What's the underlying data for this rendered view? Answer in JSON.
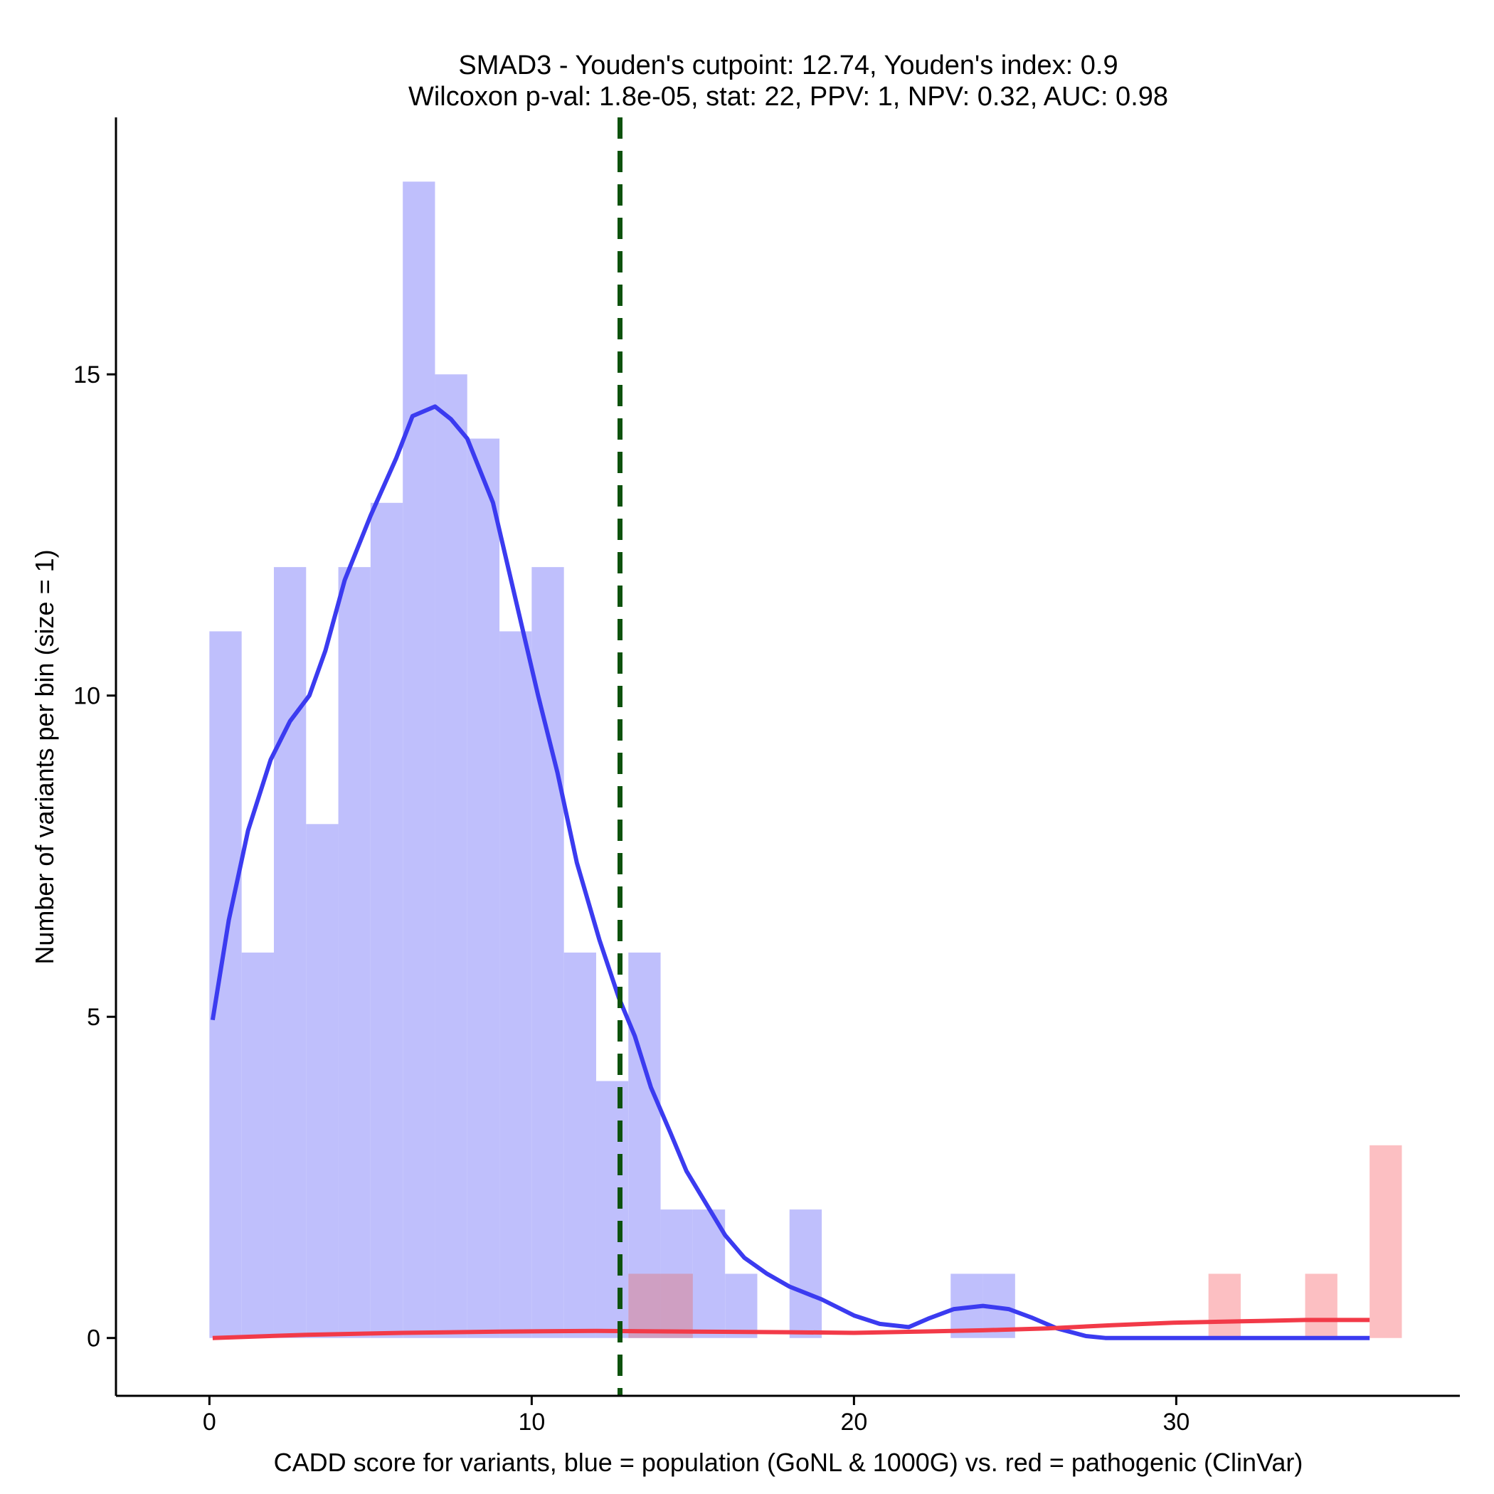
{
  "chart_data": {
    "type": "bar",
    "title_line1": "SMAD3 - Youden's cutpoint: 12.74, Youden's index: 0.9",
    "title_line2": "Wilcoxon p-val: 1.8e-05, stat: 22, PPV: 1, NPV: 0.32, AUC: 0.98",
    "xlabel": "CADD score for variants, blue = population (GoNL & 1000G) vs. red = pathogenic (ClinVar)",
    "ylabel": "Number of variants per bin (size = 1)",
    "xlim": [
      -2.9,
      38.8
    ],
    "ylim": [
      -0.9,
      19.0
    ],
    "x_ticks": [
      0,
      10,
      20,
      30
    ],
    "y_ticks": [
      0,
      5,
      10,
      15
    ],
    "bin_size": 1,
    "cutpoint": 12.74,
    "colors": {
      "population_bar": "#bfbffc",
      "pathogenic_bar": "#fcbfc2",
      "overlap_bar": "#cf9fc2",
      "population_line": "#3b3bf0",
      "pathogenic_line": "#f23a48",
      "cutpoint_line": "#0d520d",
      "axis": "#000000"
    },
    "series": [
      {
        "name": "population",
        "bins": [
          {
            "x": 0,
            "count": 11
          },
          {
            "x": 1,
            "count": 6
          },
          {
            "x": 2,
            "count": 12
          },
          {
            "x": 3,
            "count": 8
          },
          {
            "x": 4,
            "count": 12
          },
          {
            "x": 5,
            "count": 13
          },
          {
            "x": 6,
            "count": 18
          },
          {
            "x": 7,
            "count": 15
          },
          {
            "x": 8,
            "count": 14
          },
          {
            "x": 9,
            "count": 11
          },
          {
            "x": 10,
            "count": 12
          },
          {
            "x": 11,
            "count": 6
          },
          {
            "x": 12,
            "count": 4
          },
          {
            "x": 13,
            "count": 6
          },
          {
            "x": 14,
            "count": 2
          },
          {
            "x": 15,
            "count": 2
          },
          {
            "x": 16,
            "count": 1
          },
          {
            "x": 18,
            "count": 2
          },
          {
            "x": 23,
            "count": 1
          },
          {
            "x": 24,
            "count": 1
          }
        ]
      },
      {
        "name": "pathogenic",
        "bins": [
          {
            "x": 13,
            "count": 1
          },
          {
            "x": 14,
            "count": 1
          },
          {
            "x": 31,
            "count": 1
          },
          {
            "x": 34,
            "count": 1
          },
          {
            "x": 36,
            "count": 3
          }
        ]
      }
    ],
    "density_population": [
      [
        0.1,
        4.95
      ],
      [
        0.6,
        6.5
      ],
      [
        1.2,
        7.9
      ],
      [
        1.9,
        9.0
      ],
      [
        2.5,
        9.6
      ],
      [
        3.1,
        10.0
      ],
      [
        3.6,
        10.7
      ],
      [
        4.2,
        11.8
      ],
      [
        5.0,
        12.8
      ],
      [
        5.8,
        13.7
      ],
      [
        6.3,
        14.35
      ],
      [
        7.0,
        14.5
      ],
      [
        7.5,
        14.3
      ],
      [
        8.0,
        14.0
      ],
      [
        8.8,
        13.0
      ],
      [
        9.5,
        11.5
      ],
      [
        10.2,
        10.0
      ],
      [
        10.8,
        8.8
      ],
      [
        11.4,
        7.4
      ],
      [
        12.1,
        6.2
      ],
      [
        12.7,
        5.3
      ],
      [
        13.2,
        4.7
      ],
      [
        13.7,
        3.9
      ],
      [
        14.3,
        3.2
      ],
      [
        14.8,
        2.6
      ],
      [
        15.4,
        2.1
      ],
      [
        16.0,
        1.6
      ],
      [
        16.6,
        1.25
      ],
      [
        17.3,
        1.0
      ],
      [
        18.0,
        0.8
      ],
      [
        19.0,
        0.6
      ],
      [
        20.0,
        0.35
      ],
      [
        20.8,
        0.22
      ],
      [
        21.7,
        0.17
      ],
      [
        22.3,
        0.3
      ],
      [
        23.1,
        0.45
      ],
      [
        24.0,
        0.5
      ],
      [
        24.8,
        0.45
      ],
      [
        25.5,
        0.32
      ],
      [
        26.3,
        0.15
      ],
      [
        27.2,
        0.03
      ],
      [
        27.8,
        0.0
      ],
      [
        30.0,
        0.0
      ],
      [
        33.0,
        0.0
      ],
      [
        36.0,
        0.0
      ]
    ],
    "density_pathogenic": [
      [
        0.1,
        0.0
      ],
      [
        3.0,
        0.05
      ],
      [
        6.0,
        0.08
      ],
      [
        9.0,
        0.1
      ],
      [
        12.0,
        0.11
      ],
      [
        15.0,
        0.1
      ],
      [
        18.0,
        0.09
      ],
      [
        20.0,
        0.08
      ],
      [
        22.0,
        0.1
      ],
      [
        24.0,
        0.12
      ],
      [
        26.0,
        0.15
      ],
      [
        28.0,
        0.2
      ],
      [
        30.0,
        0.24
      ],
      [
        32.0,
        0.26
      ],
      [
        34.0,
        0.28
      ],
      [
        36.0,
        0.28
      ]
    ]
  }
}
